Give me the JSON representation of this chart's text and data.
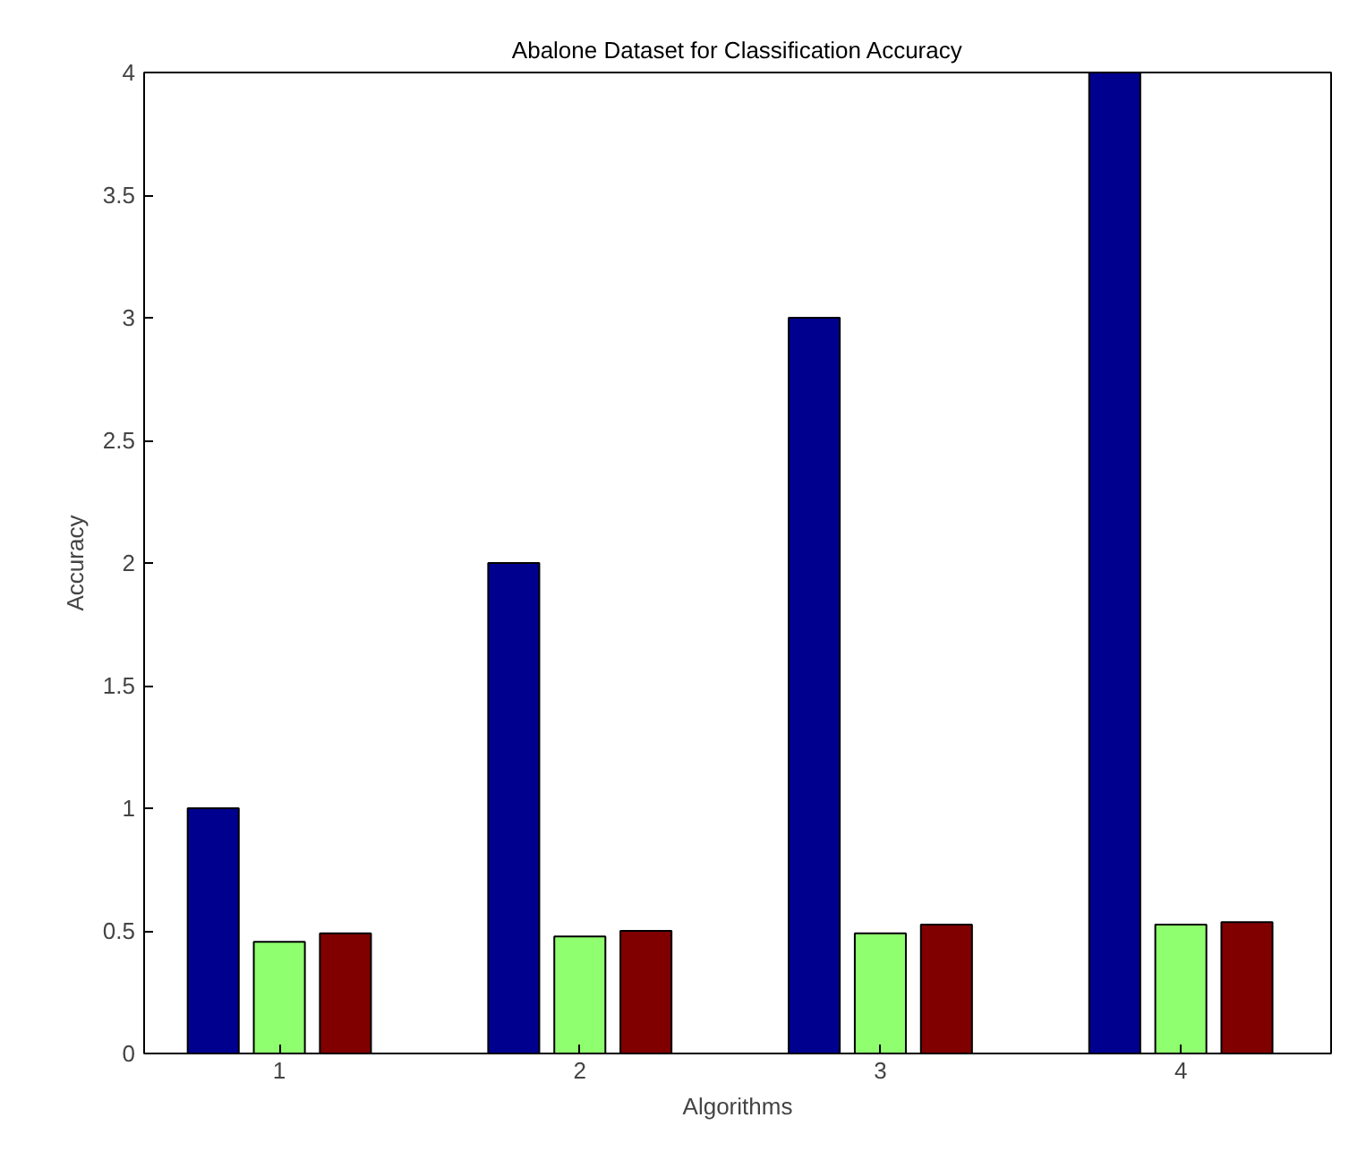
{
  "chart_data": {
    "type": "bar",
    "title": "Abalone Dataset for Classification Accuracy",
    "xlabel": "Algorithms",
    "ylabel": "Accuracy",
    "categories": [
      "1",
      "2",
      "3",
      "4"
    ],
    "series": [
      {
        "color": "#00008f",
        "values": [
          1,
          2,
          3,
          4
        ]
      },
      {
        "color": "#8fff6f",
        "values": [
          0.455,
          0.477,
          0.49,
          0.526
        ]
      },
      {
        "color": "#800000",
        "values": [
          0.49,
          0.5,
          0.526,
          0.536
        ]
      }
    ],
    "ylim": [
      0,
      4
    ],
    "yticks": [
      0,
      0.5,
      1,
      1.5,
      2,
      2.5,
      3,
      3.5,
      4
    ],
    "grid": false
  }
}
